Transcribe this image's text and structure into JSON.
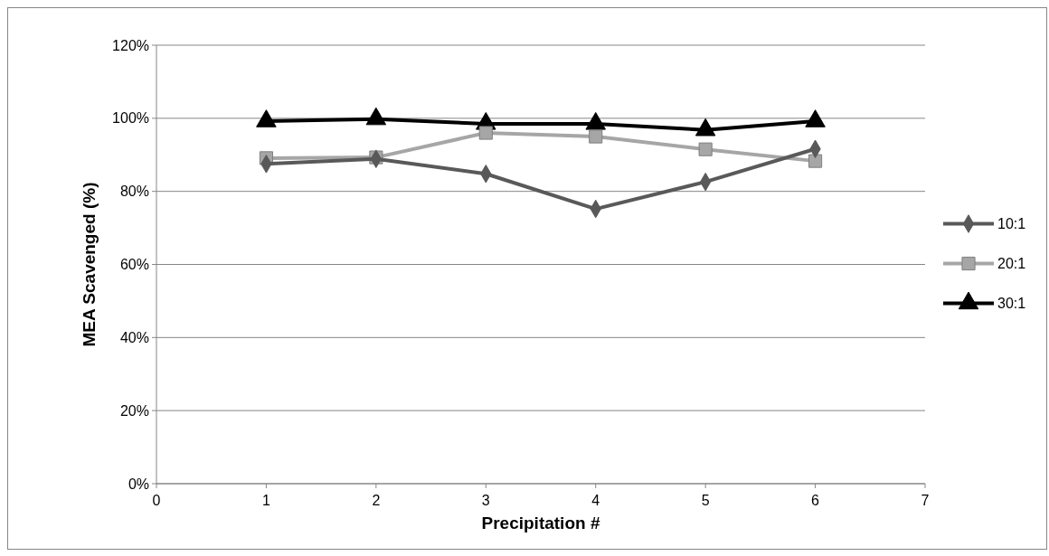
{
  "chart_data": {
    "type": "line",
    "xlabel": "Precipitation #",
    "ylabel": "MEA Scavenged (%)",
    "x": [
      1,
      2,
      3,
      4,
      5,
      6
    ],
    "xlim": [
      0,
      7
    ],
    "xticks": [
      0,
      1,
      2,
      3,
      4,
      5,
      6,
      7
    ],
    "ylim": [
      0,
      120
    ],
    "yticks": [
      {
        "value": 0,
        "label": "0%"
      },
      {
        "value": 20,
        "label": "20%"
      },
      {
        "value": 40,
        "label": "40%"
      },
      {
        "value": 60,
        "label": "60%"
      },
      {
        "value": 80,
        "label": "80%"
      },
      {
        "value": 100,
        "label": "100%"
      },
      {
        "value": 120,
        "label": "120%"
      }
    ],
    "grid": "y",
    "legend": "right",
    "series": [
      {
        "name": "10:1",
        "color": "#595959",
        "marker": "diamond",
        "values": [
          87.5,
          88.9,
          84.8,
          75.2,
          82.6,
          91.6
        ]
      },
      {
        "name": "20:1",
        "color": "#a6a6a6",
        "marker": "square",
        "values": [
          89.1,
          89.3,
          96,
          95,
          91.5,
          88.3
        ]
      },
      {
        "name": "30:1",
        "color": "#000000",
        "marker": "triangle",
        "values": [
          99.2,
          99.8,
          98.5,
          98.5,
          96.8,
          99.2
        ]
      }
    ]
  }
}
